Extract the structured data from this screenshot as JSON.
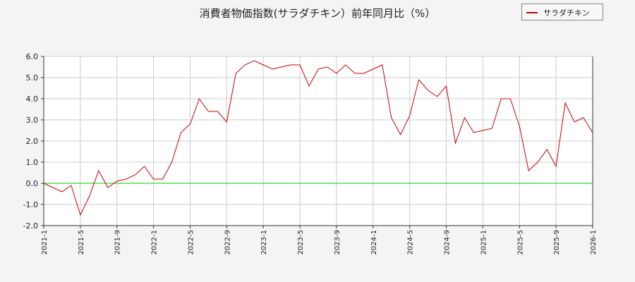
{
  "chart_data": {
    "type": "line",
    "title": "消費者物価指数(サラダチキン）前年同月比（%）",
    "xlabel": "",
    "ylabel": "",
    "ylim": [
      -2.0,
      6.0
    ],
    "y_ticks": [
      "6.0",
      "5.0",
      "4.0",
      "3.0",
      "2.0",
      "1.0",
      "0.0",
      "-1.0",
      "-2.0"
    ],
    "x_ticks": [
      "2021-1",
      "2021-5",
      "2021-9",
      "2022-1",
      "2022-5",
      "2022-9",
      "2023-1",
      "2023-5",
      "2023-9",
      "2024-1",
      "2024-5",
      "2024-9",
      "2025-1",
      "2025-5",
      "2025-9",
      "2026-1"
    ],
    "grid": true,
    "legend_position": "top-right",
    "reference_line": {
      "y": 0,
      "color": "#00cc00"
    },
    "series": [
      {
        "name": "サラダチキン",
        "color": "#cc0000",
        "x": [
          "2021-1",
          "2021-2",
          "2021-3",
          "2021-4",
          "2021-5",
          "2021-6",
          "2021-7",
          "2021-8",
          "2021-9",
          "2021-10",
          "2021-11",
          "2021-12",
          "2022-1",
          "2022-2",
          "2022-3",
          "2022-4",
          "2022-5",
          "2022-6",
          "2022-7",
          "2022-8",
          "2022-9",
          "2022-10",
          "2022-11",
          "2022-12",
          "2023-1",
          "2023-2",
          "2023-3",
          "2023-4",
          "2023-5",
          "2023-6",
          "2023-7",
          "2023-8",
          "2023-9",
          "2023-10",
          "2023-11",
          "2023-12",
          "2024-1",
          "2024-2",
          "2024-3",
          "2024-4",
          "2024-5",
          "2024-6",
          "2024-7",
          "2024-8",
          "2024-9",
          "2024-10",
          "2024-11",
          "2024-12",
          "2025-1",
          "2025-2",
          "2025-3",
          "2025-4",
          "2025-5",
          "2025-6",
          "2025-7",
          "2025-8",
          "2025-9",
          "2025-10",
          "2025-11",
          "2025-12",
          "2026-1"
        ],
        "values": [
          0.0,
          -0.2,
          -0.4,
          -0.1,
          -1.5,
          -0.6,
          0.6,
          -0.2,
          0.1,
          0.2,
          0.4,
          0.8,
          0.2,
          0.2,
          1.0,
          2.4,
          2.8,
          4.0,
          3.4,
          3.4,
          2.9,
          5.2,
          5.6,
          5.8,
          5.6,
          5.4,
          5.5,
          5.6,
          5.6,
          4.6,
          5.4,
          5.5,
          5.2,
          5.6,
          5.2,
          5.2,
          5.4,
          5.6,
          3.1,
          2.3,
          3.2,
          4.9,
          4.4,
          4.1,
          4.6,
          1.9,
          3.1,
          2.4,
          2.5,
          2.6,
          4.0,
          4.0,
          2.7,
          0.6,
          1.0,
          1.6,
          0.8,
          3.8,
          2.9,
          3.1,
          2.4
        ]
      }
    ]
  }
}
